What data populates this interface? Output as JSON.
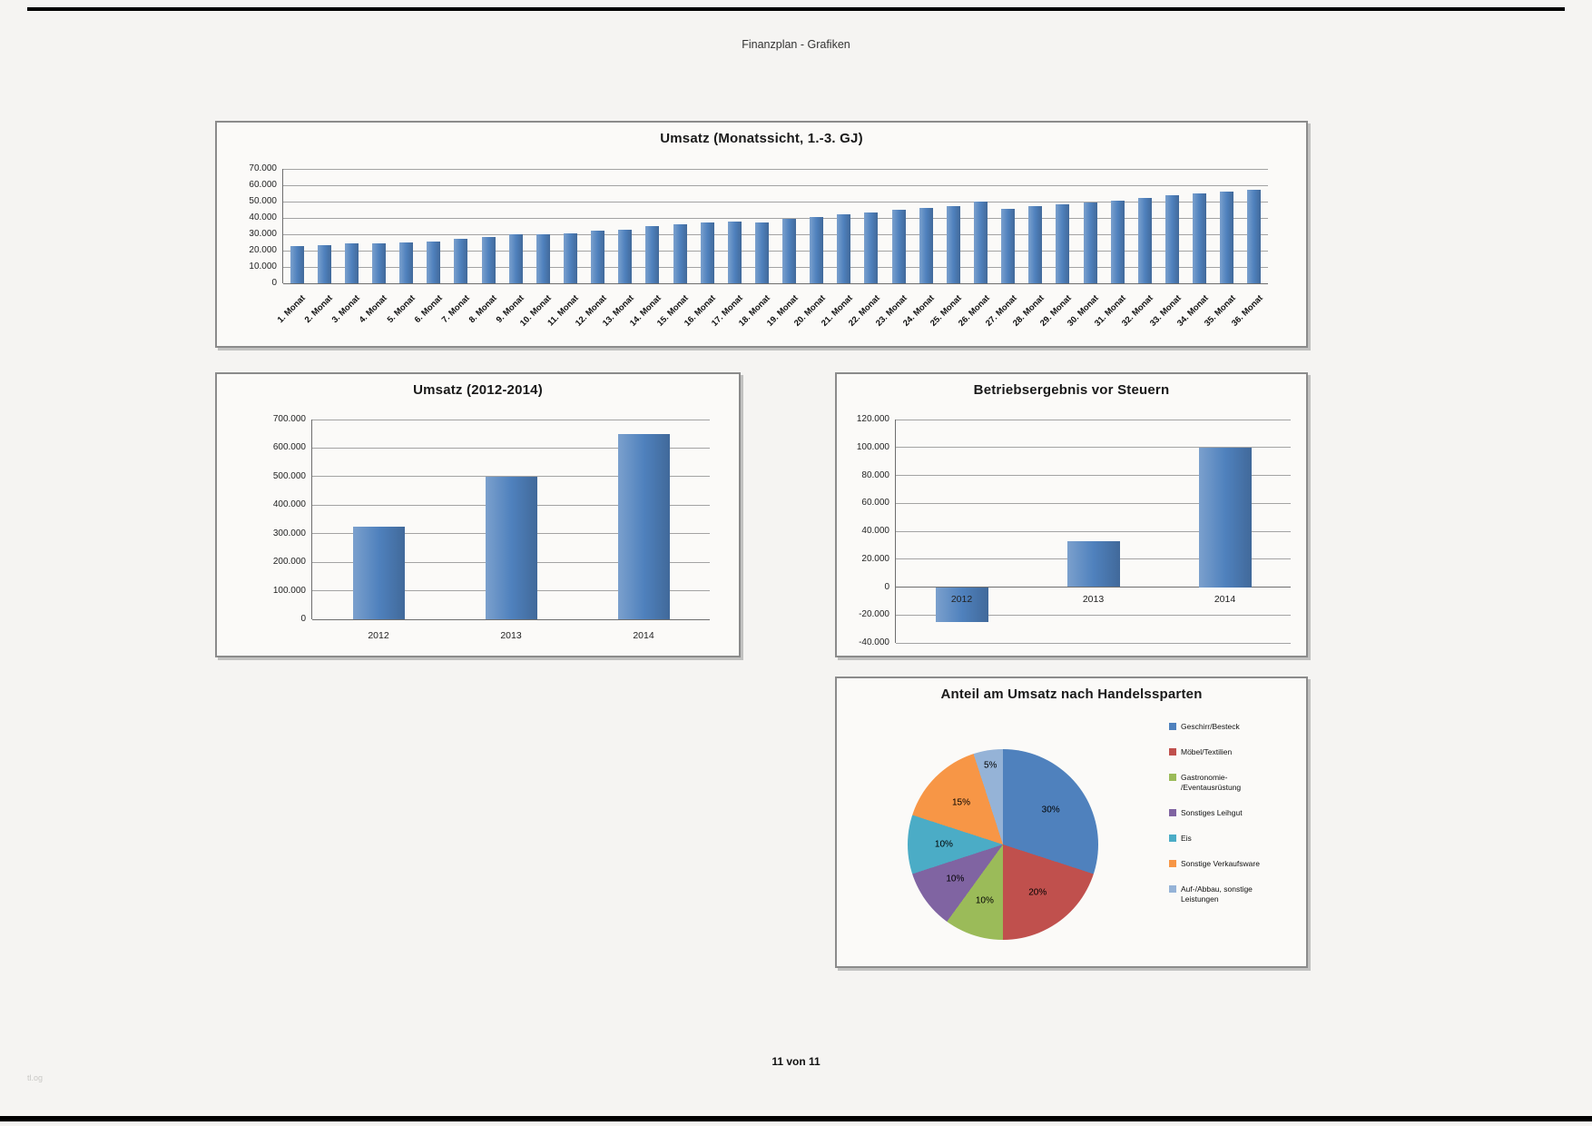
{
  "page": {
    "header_title": "Finanzplan - Grafiken",
    "footer_text": "11 von 11",
    "watermark": "tl.og"
  },
  "colors": {
    "bar_blue": "#4f81bd",
    "grid_gray": "#a3a3a3",
    "page_background": "#f5f4f2"
  },
  "chart_data": [
    {
      "id": "umsatz-monatssicht",
      "type": "bar",
      "title": "Umsatz (Monatssicht, 1.-3. GJ)",
      "categories": [
        "1. Monat",
        "2. Monat",
        "3. Monat",
        "4. Monat",
        "5. Monat",
        "6. Monat",
        "7. Monat",
        "8. Monat",
        "9. Monat",
        "10. Monat",
        "11. Monat",
        "12. Monat",
        "13. Monat",
        "14. Monat",
        "15. Monat",
        "16. Monat",
        "17. Monat",
        "18. Monat",
        "19. Monat",
        "20. Monat",
        "21. Monat",
        "22. Monat",
        "23. Monat",
        "24. Monat",
        "25. Monat",
        "26. Monat",
        "27. Monat",
        "28. Monat",
        "29. Monat",
        "30. Monat",
        "31. Monat",
        "32. Monat",
        "33. Monat",
        "34. Monat",
        "35. Monat",
        "36. Monat"
      ],
      "values": [
        23000,
        23500,
        24500,
        24500,
        25000,
        25500,
        27000,
        28500,
        30000,
        30000,
        30500,
        32000,
        33000,
        35000,
        36000,
        37000,
        38000,
        37500,
        39500,
        40500,
        42000,
        43500,
        45000,
        46000,
        47000,
        50000,
        45500,
        47000,
        48500,
        49500,
        50500,
        52000,
        54000,
        55000,
        56000,
        57000
      ],
      "ylim": [
        0,
        70000
      ],
      "ytick_step": 10000,
      "bar_color": "#4f81bd",
      "grid": true,
      "xlabel": "",
      "ylabel": ""
    },
    {
      "id": "umsatz-jahre",
      "type": "bar",
      "title": "Umsatz (2012-2014)",
      "categories": [
        "2012",
        "2013",
        "2014"
      ],
      "values": [
        325000,
        500000,
        650000
      ],
      "ylim": [
        0,
        700000
      ],
      "ytick_step": 100000,
      "bar_color": "#4f81bd",
      "grid": true,
      "xlabel": "",
      "ylabel": ""
    },
    {
      "id": "betriebsergebnis-vor-steuern",
      "type": "bar",
      "title": "Betriebsergebnis vor Steuern",
      "categories": [
        "2012",
        "2013",
        "2014"
      ],
      "values": [
        -25000,
        33000,
        100000
      ],
      "ylim": [
        -40000,
        120000
      ],
      "ytick_step": 20000,
      "bar_color": "#4f81bd",
      "grid": true,
      "xlabel": "",
      "ylabel": ""
    },
    {
      "id": "anteil-umsatz-handelssparten",
      "type": "pie",
      "title": "Anteil am Umsatz nach Handelssparten",
      "start_angle_deg": 0,
      "direction": "clockwise",
      "data_labels": "percent",
      "legend_position": "right",
      "slices": [
        {
          "label": "Geschirr/Besteck",
          "pct": 30,
          "color": "#4f81bd",
          "pct_label": "30%"
        },
        {
          "label": "Möbel/Textilien",
          "pct": 20,
          "color": "#c0504d",
          "pct_label": "20%"
        },
        {
          "label": "Gastronomie- /Eventausrüstung",
          "pct": 10,
          "color": "#9bbb59",
          "pct_label": "10%"
        },
        {
          "label": "Sonstiges Leihgut",
          "pct": 10,
          "color": "#8064a2",
          "pct_label": "10%"
        },
        {
          "label": "Eis",
          "pct": 10,
          "color": "#4bacc6",
          "pct_label": "10%"
        },
        {
          "label": "Sonstige Verkaufsware",
          "pct": 15,
          "color": "#f79646",
          "pct_label": "15%"
        },
        {
          "label": "Auf-/Abbau, sonstige Leistungen",
          "pct": 5,
          "color": "#95b3d7",
          "pct_label": "5%"
        }
      ]
    }
  ]
}
